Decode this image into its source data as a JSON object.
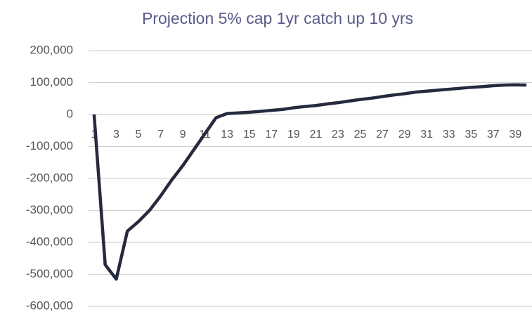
{
  "chart_data": {
    "type": "line",
    "title": "Projection 5% cap 1yr catch up 10 yrs",
    "categories": [
      1,
      null,
      3,
      null,
      5,
      null,
      7,
      null,
      9,
      null,
      11,
      null,
      13,
      null,
      15,
      null,
      17,
      null,
      19,
      null,
      21,
      null,
      23,
      null,
      25,
      null,
      27,
      null,
      29,
      null,
      31,
      null,
      33,
      null,
      35,
      null,
      37,
      null,
      39,
      null
    ],
    "values": [
      0,
      -470000,
      -515000,
      -365000,
      -335000,
      -300000,
      -255000,
      -205000,
      -160000,
      -110000,
      -60000,
      -10000,
      3000,
      5000,
      7000,
      10000,
      13000,
      16000,
      21000,
      25000,
      28000,
      33000,
      37000,
      42000,
      47000,
      51000,
      56000,
      61000,
      65000,
      70000,
      73000,
      76000,
      79000,
      82000,
      85000,
      87000,
      90000,
      92000,
      93000,
      92000
    ],
    "color": "#262a3e",
    "ylim": [
      -600000,
      200000
    ],
    "yticks": [
      {
        "value": -600000,
        "label": "-600,000"
      },
      {
        "value": -500000,
        "label": "-500,000"
      },
      {
        "value": -400000,
        "label": "-400,000"
      },
      {
        "value": -300000,
        "label": "-300,000"
      },
      {
        "value": -200000,
        "label": "-200,000"
      },
      {
        "value": -100000,
        "label": "-100,000"
      },
      0,
      {
        "value": 100000,
        "label": "100,000"
      },
      {
        "value": 200000,
        "label": "200,000"
      }
    ],
    "grid": true
  }
}
